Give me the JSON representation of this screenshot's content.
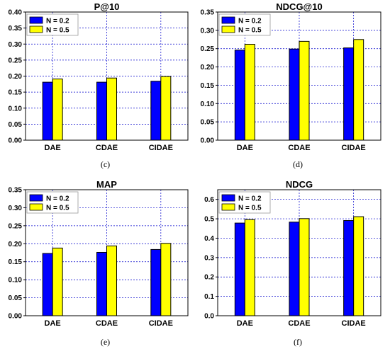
{
  "colors": {
    "n02": "#0000ff",
    "n05": "#ffff00",
    "grid": "#0000cc"
  },
  "legend": [
    "N = 0.2",
    "N = 0.5"
  ],
  "chart_data": [
    {
      "type": "bar",
      "title": "P@10",
      "caption": "(c)",
      "categories": [
        "DAE",
        "CDAE",
        "CIDAE"
      ],
      "series": [
        {
          "name": "N = 0.2",
          "values": [
            0.181,
            0.181,
            0.184
          ]
        },
        {
          "name": "N = 0.5",
          "values": [
            0.191,
            0.194,
            0.199
          ]
        }
      ],
      "ylim": [
        0,
        0.4
      ],
      "yticks": [
        "0.00",
        "0.05",
        "0.10",
        "0.15",
        "0.20",
        "0.25",
        "0.30",
        "0.35",
        "0.40"
      ],
      "grid": true,
      "legend": "top-left"
    },
    {
      "type": "bar",
      "title": "NDCG@10",
      "caption": "(d)",
      "categories": [
        "DAE",
        "CDAE",
        "CIDAE"
      ],
      "series": [
        {
          "name": "N = 0.2",
          "values": [
            0.246,
            0.249,
            0.252
          ]
        },
        {
          "name": "N = 0.5",
          "values": [
            0.262,
            0.27,
            0.275
          ]
        }
      ],
      "ylim": [
        0,
        0.35
      ],
      "yticks": [
        "0.00",
        "0.05",
        "0.10",
        "0.15",
        "0.20",
        "0.25",
        "0.30",
        "0.35"
      ],
      "grid": true,
      "legend": "top-left"
    },
    {
      "type": "bar",
      "title": "MAP",
      "caption": "(e)",
      "categories": [
        "DAE",
        "CDAE",
        "CIDAE"
      ],
      "series": [
        {
          "name": "N = 0.2",
          "values": [
            0.173,
            0.176,
            0.184
          ]
        },
        {
          "name": "N = 0.5",
          "values": [
            0.188,
            0.194,
            0.201
          ]
        }
      ],
      "ylim": [
        0,
        0.35
      ],
      "yticks": [
        "0.00",
        "0.05",
        "0.10",
        "0.15",
        "0.20",
        "0.25",
        "0.30",
        "0.35"
      ],
      "grid": true,
      "legend": "top-left"
    },
    {
      "type": "bar",
      "title": "NDCG",
      "caption": "(f)",
      "categories": [
        "DAE",
        "CDAE",
        "CIDAE"
      ],
      "series": [
        {
          "name": "N = 0.2",
          "values": [
            0.478,
            0.483,
            0.491
          ]
        },
        {
          "name": "N = 0.5",
          "values": [
            0.496,
            0.501,
            0.511
          ]
        }
      ],
      "ylim": [
        0,
        0.65
      ],
      "yticks": [
        "0.0",
        "0.1",
        "0.2",
        "0.3",
        "0.4",
        "0.5",
        "0.6"
      ],
      "grid": true,
      "legend": "top-left"
    }
  ]
}
